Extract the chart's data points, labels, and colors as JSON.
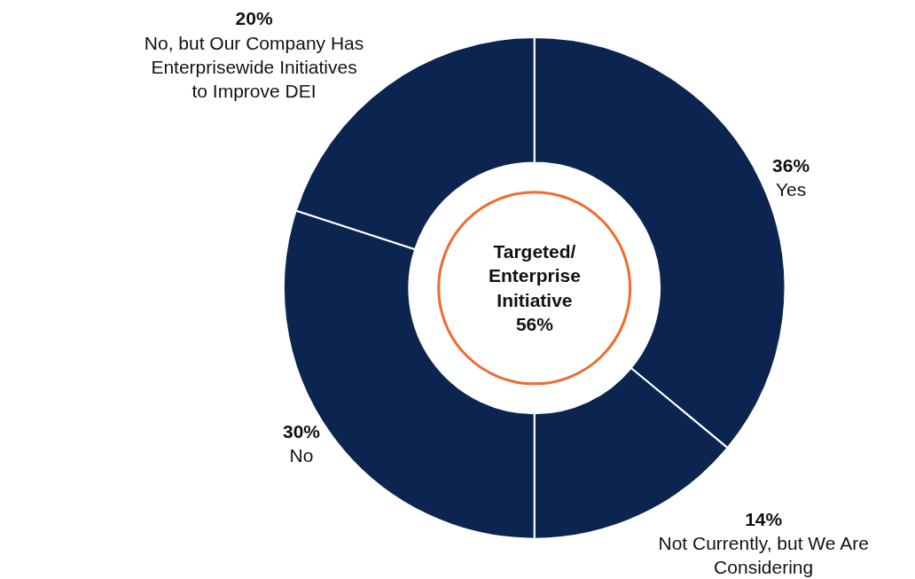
{
  "chart_data": {
    "type": "donut",
    "categories": [
      "Yes",
      "Not Currently, but We Are Considering",
      "No",
      "No, but Our Company Has Enterprisewide Initiatives to Improve DEI"
    ],
    "values": [
      36,
      14,
      30,
      20
    ],
    "colors": [
      "#0b2550",
      "#0b2550",
      "#0b2550",
      "#0b2550"
    ],
    "value_labels": [
      "36%",
      "14%",
      "30%",
      "20%"
    ],
    "annotations": [
      "Targeted/ Enterprise Initiative 56%"
    ],
    "legend": false
  }
}
